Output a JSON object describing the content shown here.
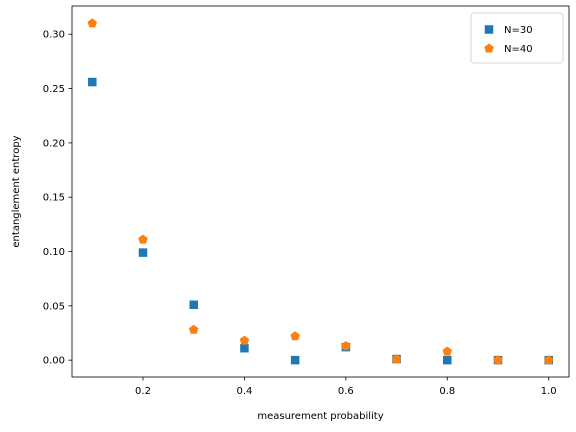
{
  "chart_data": {
    "type": "scatter",
    "title": "",
    "xlabel": "measurement probability",
    "ylabel": "entanglement entropy",
    "xlim": [
      0.06,
      1.04
    ],
    "ylim": [
      -0.0155,
      0.326
    ],
    "xticks": [
      0.2,
      0.4,
      0.6,
      0.8,
      1.0
    ],
    "xtick_labels": [
      "0.2",
      "0.4",
      "0.6",
      "0.8",
      "1.0"
    ],
    "yticks": [
      0.0,
      0.05,
      0.1,
      0.15,
      0.2,
      0.25,
      0.3
    ],
    "ytick_labels": [
      "0.00",
      "0.05",
      "0.10",
      "0.15",
      "0.20",
      "0.25",
      "0.30"
    ],
    "grid": false,
    "legend_position": "top-right",
    "series": [
      {
        "name": "N=30",
        "marker": "square",
        "color": "#1f77b4",
        "x": [
          0.1,
          0.2,
          0.3,
          0.4,
          0.5,
          0.6,
          0.7,
          0.8,
          0.9,
          1.0
        ],
        "y": [
          0.256,
          0.099,
          0.051,
          0.011,
          0.0,
          0.012,
          0.001,
          0.0,
          0.0,
          0.0
        ]
      },
      {
        "name": "N=40",
        "marker": "pentagon",
        "color": "#ff7f0e",
        "x": [
          0.1,
          0.2,
          0.3,
          0.4,
          0.5,
          0.6,
          0.7,
          0.8,
          0.9,
          1.0
        ],
        "y": [
          0.31,
          0.111,
          0.028,
          0.018,
          0.022,
          0.013,
          0.001,
          0.008,
          0.0,
          0.0
        ]
      }
    ]
  }
}
